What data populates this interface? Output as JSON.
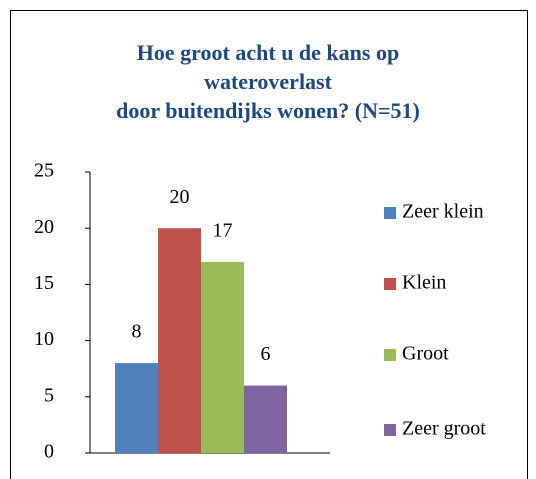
{
  "chart_data": {
    "type": "bar",
    "title": [
      "Hoe groot acht u de kans op",
      "wateroverlast",
      "door buitendijks wonen? (N=51)"
    ],
    "series": [
      {
        "name": "Zeer klein",
        "color": "#4f81bd",
        "values": [
          8
        ]
      },
      {
        "name": "Klein",
        "color": "#c0504d",
        "values": [
          20
        ]
      },
      {
        "name": "Groot",
        "color": "#9bbb59",
        "values": [
          17
        ]
      },
      {
        "name": "Zeer groot",
        "color": "#8064a2",
        "values": [
          6
        ]
      }
    ],
    "ylim": [
      0,
      25
    ],
    "yticks": [
      0,
      5,
      10,
      15,
      20,
      25
    ],
    "legend": "right",
    "grid": false
  }
}
